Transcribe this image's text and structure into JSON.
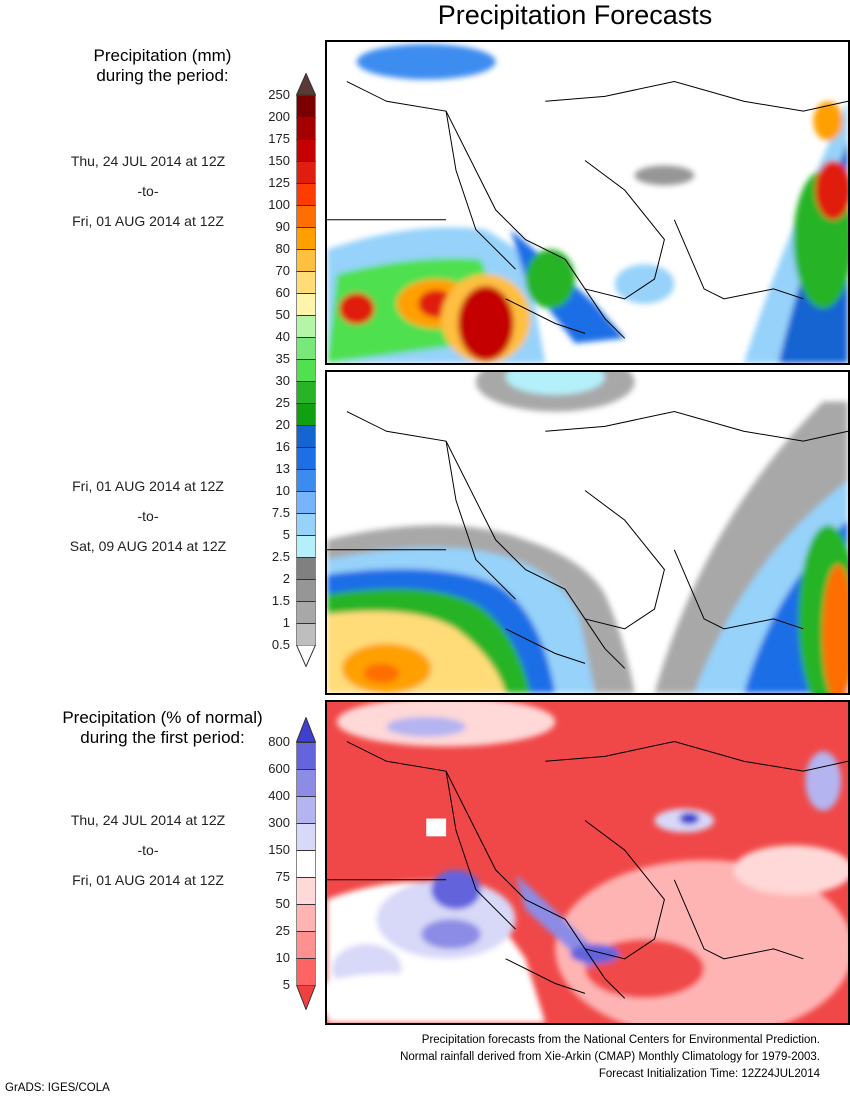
{
  "title": "Precipitation Forecasts",
  "legend1": {
    "heading_line1": "Precipitation (mm)",
    "heading_line2": "during the period:",
    "labels": [
      "250",
      "200",
      "175",
      "150",
      "125",
      "100",
      "90",
      "80",
      "70",
      "60",
      "50",
      "40",
      "35",
      "30",
      "25",
      "20",
      "16",
      "13",
      "10",
      "7.5",
      "5",
      "2.5",
      "2",
      "1.5",
      "1",
      "0.5"
    ],
    "colors": [
      "#7a0000",
      "#a40000",
      "#c40000",
      "#e01e10",
      "#ff3c00",
      "#ff6e00",
      "#ffa000",
      "#ffbf40",
      "#ffdc78",
      "#fff5aa",
      "#b4f5a8",
      "#78e878",
      "#50e050",
      "#28b428",
      "#10a010",
      "#1464d2",
      "#1e6ee6",
      "#3c8cf0",
      "#78b4fa",
      "#96d2fa",
      "#b4f0fa",
      "#808080",
      "#969696",
      "#a8a8a8",
      "#bebebe"
    ],
    "over_color": "#5a3a32",
    "under_color": "#ffffff"
  },
  "legend2": {
    "heading_line1": "Precipitation (% of normal)",
    "heading_line2": "during the first period:",
    "labels": [
      "800",
      "600",
      "400",
      "300",
      "150",
      "75",
      "50",
      "25",
      "10",
      "5"
    ],
    "colors": [
      "#6464dc",
      "#8c8ce6",
      "#b4b4f0",
      "#d8d8f8",
      "#ffffff",
      "#ffd8d8",
      "#ffb4b4",
      "#ff9090",
      "#ff6464"
    ],
    "over_color": "#4040d0",
    "under_color": "#f04040"
  },
  "periods": [
    {
      "start": "Thu, 24 JUL 2014 at 12Z",
      "sep": "-to-",
      "end": "Fri, 01 AUG 2014 at 12Z"
    },
    {
      "start": "Fri, 01 AUG 2014 at 12Z",
      "sep": "-to-",
      "end": "Sat, 09 AUG 2014 at 12Z"
    },
    {
      "start": "Thu, 24 JUL 2014 at 12Z",
      "sep": "-to-",
      "end": "Fri, 01 AUG 2014 at 12Z"
    }
  ],
  "footer": {
    "line1": "Precipitation forecasts from the National Centers for Environmental Prediction.",
    "line2": "Normal rainfall derived from Xie-Arkin (CMAP) Monthly Climatology for 1979-2003.",
    "line3": "Forecast Initialization Time: 12Z24JUL2014"
  },
  "credit": "GrADS: IGES/COLA"
}
